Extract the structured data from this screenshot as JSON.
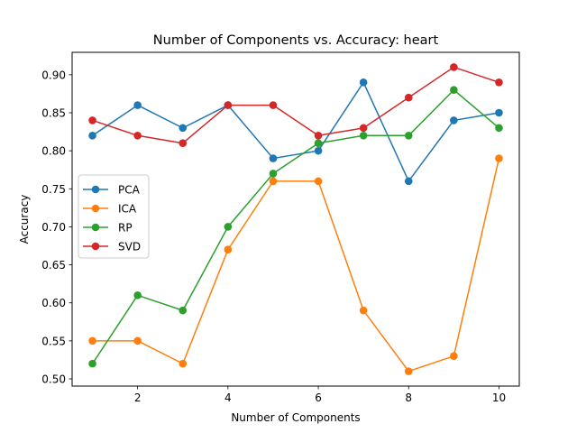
{
  "chart_data": {
    "type": "line",
    "title": "Number of Components vs. Accuracy: heart",
    "xlabel": "Number of Components",
    "ylabel": "Accuracy",
    "x": [
      1,
      2,
      3,
      4,
      5,
      6,
      7,
      8,
      9,
      10
    ],
    "xlim": [
      0.55,
      10.45
    ],
    "ylim": [
      0.4905,
      0.9295
    ],
    "xticks": [
      2,
      4,
      6,
      8,
      10
    ],
    "xtick_labels": [
      "2",
      "4",
      "6",
      "8",
      "10"
    ],
    "yticks": [
      0.5,
      0.55,
      0.6,
      0.65,
      0.7,
      0.75,
      0.8,
      0.85,
      0.9
    ],
    "ytick_labels": [
      "0.50",
      "0.55",
      "0.60",
      "0.65",
      "0.70",
      "0.75",
      "0.80",
      "0.85",
      "0.90"
    ],
    "grid": false,
    "legend_position": "center-left",
    "series": [
      {
        "name": "PCA",
        "color": "#1f77b4",
        "values": [
          0.82,
          0.86,
          0.83,
          0.86,
          0.79,
          0.8,
          0.89,
          0.76,
          0.84,
          0.85
        ]
      },
      {
        "name": "ICA",
        "color": "#ff7f0e",
        "values": [
          0.55,
          0.55,
          0.52,
          0.67,
          0.76,
          0.76,
          0.59,
          0.51,
          0.53,
          0.79
        ]
      },
      {
        "name": "RP",
        "color": "#2ca02c",
        "values": [
          0.52,
          0.61,
          0.59,
          0.7,
          0.77,
          0.81,
          0.82,
          0.82,
          0.88,
          0.83
        ]
      },
      {
        "name": "SVD",
        "color": "#d62728",
        "values": [
          0.84,
          0.82,
          0.81,
          0.86,
          0.86,
          0.82,
          0.83,
          0.87,
          0.91,
          0.89
        ]
      }
    ]
  }
}
